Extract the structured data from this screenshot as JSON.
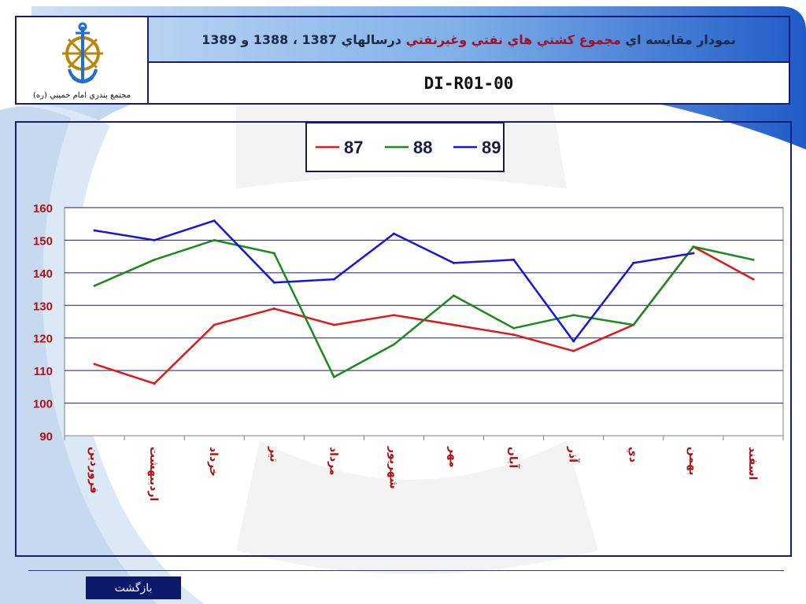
{
  "header": {
    "logo_caption": "مجتمع بندري امام خميني (ره)",
    "title_part1": "نمودار مقايسه اي",
    "title_part2": "مجموع كشتي هاي نفتي وغيرنفتي",
    "title_part3": "درسالهاي 1387 ، 1388 و 1389",
    "doc_code": "DI-R01-00"
  },
  "chart_data": {
    "type": "line",
    "categories": [
      "فروردين",
      "ارديبهشت",
      "خرداد",
      "تير",
      "مرداد",
      "شهريور",
      "مهر",
      "آبان",
      "آذر",
      "دي",
      "بهمن",
      "اسفند"
    ],
    "series": [
      {
        "name": "87",
        "color": "#e01818",
        "values": [
          112,
          106,
          124,
          129,
          124,
          127,
          124,
          121,
          116,
          124,
          148,
          138
        ]
      },
      {
        "name": "88",
        "color": "#1a8a1a",
        "values": [
          136,
          144,
          150,
          146,
          108,
          118,
          133,
          123,
          127,
          124,
          148,
          144
        ]
      },
      {
        "name": "89",
        "color": "#1515e0",
        "values": [
          153,
          150,
          156,
          137,
          138,
          152,
          143,
          144,
          119,
          143,
          146,
          null
        ]
      }
    ],
    "ylim": [
      90,
      160
    ],
    "yticks": [
      90,
      100,
      110,
      120,
      130,
      140,
      150,
      160
    ],
    "grid": true,
    "legend_position": "top-center"
  },
  "footer": {
    "back_label": "بازگشت"
  }
}
